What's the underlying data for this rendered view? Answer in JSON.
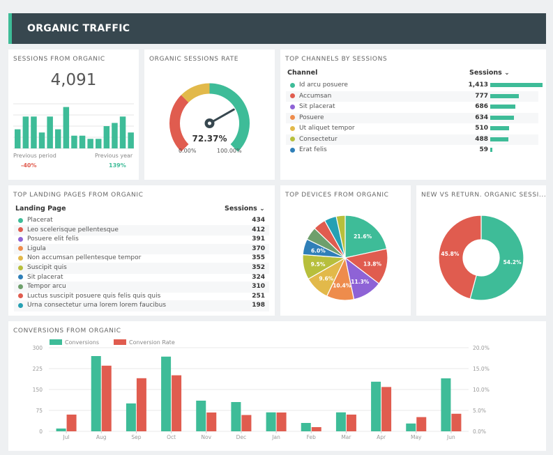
{
  "header": {
    "title": "ORGANIC TRAFFIC"
  },
  "colors": {
    "green": "#3ebc98",
    "red": "#e05c4f",
    "purple": "#8e63d6",
    "orange": "#ee8c4c",
    "yellow": "#e2b94a",
    "olive": "#b7bf3c",
    "blue": "#2f7fb8",
    "sage": "#6e9f6c",
    "teal": "#26a0b3",
    "darkgray": "#37474f"
  },
  "sessions": {
    "title": "SESSIONS FROM ORGANIC",
    "value": "4,091",
    "previous_period_label": "Previous period",
    "previous_year_label": "Previous year",
    "previous_period_change": "-40%",
    "previous_year_change": "139%",
    "spark_values": [
      6,
      10,
      10,
      5,
      10,
      6,
      13,
      4,
      4,
      3,
      3,
      7,
      8,
      10,
      5
    ]
  },
  "rate": {
    "title": "ORGANIC SESSIONS RATE",
    "value": "72.37%",
    "fraction": 0.7237,
    "min_label": "0.00%",
    "max_label": "100.00%"
  },
  "channels": {
    "title": "TOP CHANNELS BY SESSIONS",
    "col_channel": "Channel",
    "col_sessions": "Sessions",
    "items": [
      {
        "label": "Id arcu posuere",
        "value": "1,413",
        "num": 1413,
        "color": "#3ebc98"
      },
      {
        "label": "Accumsan",
        "value": "777",
        "num": 777,
        "color": "#e05c4f"
      },
      {
        "label": "Sit placerat",
        "value": "686",
        "num": 686,
        "color": "#8e63d6"
      },
      {
        "label": "Posuere",
        "value": "634",
        "num": 634,
        "color": "#ee8c4c"
      },
      {
        "label": "Ut aliquet tempor",
        "value": "510",
        "num": 510,
        "color": "#e2b94a"
      },
      {
        "label": "Consectetur",
        "value": "488",
        "num": 488,
        "color": "#b7bf3c"
      },
      {
        "label": "Erat felis",
        "value": "59",
        "num": 59,
        "color": "#2f7fb8"
      }
    ]
  },
  "landing": {
    "title": "TOP LANDING PAGES FROM ORGANIC",
    "col_page": "Landing Page",
    "col_sessions": "Sessions",
    "items": [
      {
        "label": "Placerat",
        "value": "434",
        "color": "#3ebc98"
      },
      {
        "label": "Leo scelerisque pellentesque",
        "value": "412",
        "color": "#e05c4f"
      },
      {
        "label": "Posuere elit felis",
        "value": "391",
        "color": "#8e63d6"
      },
      {
        "label": "Ligula",
        "value": "370",
        "color": "#ee8c4c"
      },
      {
        "label": "Non accumsan pellentesque tempor",
        "value": "355",
        "color": "#e2b94a"
      },
      {
        "label": "Suscipit quis",
        "value": "352",
        "color": "#b7bf3c"
      },
      {
        "label": "Sit placerat",
        "value": "324",
        "color": "#2f7fb8"
      },
      {
        "label": "Tempor arcu",
        "value": "310",
        "color": "#6e9f6c"
      },
      {
        "label": "Luctus suscipit posuere quis felis quis quis",
        "value": "251",
        "color": "#e05c4f"
      },
      {
        "label": "Urna consectetur urna lorem lorem faucibus",
        "value": "198",
        "color": "#26a0b3"
      }
    ]
  },
  "devices": {
    "title": "TOP DEVICES FROM ORGANIC",
    "slices": [
      {
        "value": 21.6,
        "label": "21.6%",
        "color": "#3ebc98"
      },
      {
        "value": 13.8,
        "label": "13.8%",
        "color": "#e05c4f"
      },
      {
        "value": 11.3,
        "label": "11.3%",
        "color": "#8e63d6"
      },
      {
        "value": 10.4,
        "label": "10.4%",
        "color": "#ee8c4c"
      },
      {
        "value": 9.6,
        "label": "9.6%",
        "color": "#e2b94a"
      },
      {
        "value": 9.5,
        "label": "9.5%",
        "color": "#b7bf3c"
      },
      {
        "value": 6.0,
        "label": "6.0%",
        "color": "#2f7fb8"
      },
      {
        "value": 5.0,
        "label": "",
        "color": "#6e9f6c"
      },
      {
        "value": 4.8,
        "label": "",
        "color": "#e05c4f"
      },
      {
        "value": 4.6,
        "label": "",
        "color": "#26a0b3"
      },
      {
        "value": 3.4,
        "label": "",
        "color": "#b7bf3c"
      }
    ]
  },
  "newret": {
    "title": "NEW VS RETURN. ORGANIC SESSI...",
    "slices": [
      {
        "value": 54.2,
        "label": "54.2%",
        "color": "#3ebc98"
      },
      {
        "value": 45.8,
        "label": "45.8%",
        "color": "#e05c4f"
      }
    ]
  },
  "conversions": {
    "title": "CONVERSIONS FROM ORGANIC",
    "legend_conv": "Conversions",
    "legend_rate": "Conversion Rate",
    "left_ticks": [
      "0",
      "75",
      "150",
      "225",
      "300"
    ],
    "right_ticks": [
      "0.0%",
      "5.0%",
      "10.0%",
      "15.0%",
      "20.0%"
    ]
  },
  "chart_data": [
    {
      "type": "bar",
      "title": "CONVERSIONS FROM ORGANIC",
      "categories": [
        "Jul",
        "Aug",
        "Sep",
        "Oct",
        "Nov",
        "Dec",
        "Jan",
        "Feb",
        "Mar",
        "Apr",
        "May",
        "Jun"
      ],
      "series": [
        {
          "name": "Conversions",
          "axis": "left",
          "color": "#3ebc98",
          "values": [
            10,
            270,
            100,
            268,
            110,
            105,
            68,
            30,
            68,
            178,
            28,
            190
          ]
        },
        {
          "name": "Conversion Rate",
          "axis": "right",
          "color": "#e05c4f",
          "values": [
            4.0,
            15.7,
            12.7,
            13.4,
            4.5,
            3.9,
            4.5,
            1.0,
            4.0,
            10.6,
            3.4,
            4.2
          ]
        }
      ],
      "ylim_left": [
        0,
        300
      ],
      "ylim_right": [
        0,
        20
      ],
      "grid": true,
      "legend": "top-left"
    },
    {
      "type": "bar",
      "title": "SESSIONS FROM ORGANIC",
      "values": [
        6,
        10,
        10,
        5,
        10,
        6,
        13,
        4,
        4,
        3,
        3,
        7,
        8,
        10,
        5
      ]
    },
    {
      "type": "pie",
      "title": "TOP DEVICES FROM ORGANIC",
      "values": [
        21.6,
        13.8,
        11.3,
        10.4,
        9.6,
        9.5,
        6.0,
        5.0,
        4.8,
        4.6,
        3.4
      ]
    },
    {
      "type": "pie",
      "title": "NEW VS RETURN. ORGANIC SESSI...",
      "values": [
        54.2,
        45.8
      ]
    }
  ]
}
